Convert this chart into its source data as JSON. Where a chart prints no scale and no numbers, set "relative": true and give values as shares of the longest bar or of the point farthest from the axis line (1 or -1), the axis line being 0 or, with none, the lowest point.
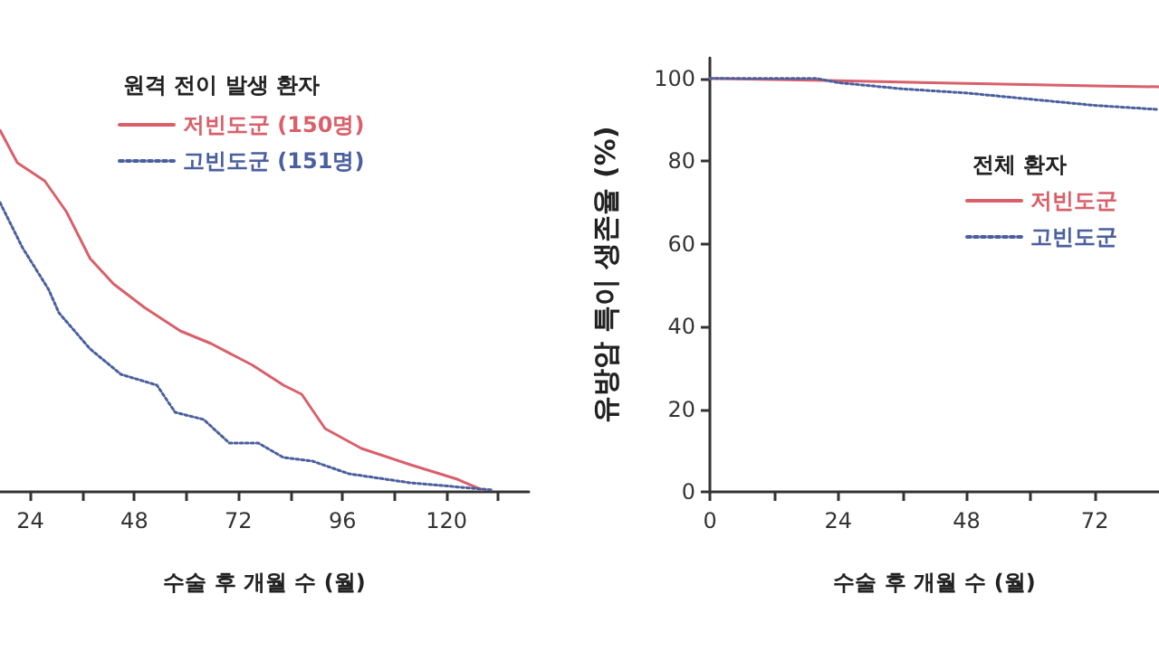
{
  "chart_data": [
    {
      "type": "line",
      "relative": true,
      "xlabel": "수술 후 개월 수 (월)",
      "legend_title": "원격 전이 발생 환자",
      "legend": "top right",
      "tick_labels": "x",
      "xlim": [
        17,
        139
      ],
      "xticks": [
        24,
        {
          "value": 36,
          "label": null
        },
        48,
        {
          "value": 60,
          "label": null
        },
        72,
        {
          "value": 84,
          "label": null
        },
        96,
        {
          "value": 108,
          "label": null
        },
        120,
        {
          "value": 132,
          "label": null
        }
      ],
      "series": [
        {
          "name": "저빈도군 (150명)",
          "color": "#d9606a",
          "line_style": "solid",
          "x": [
            17,
            21,
            27.3,
            32.3,
            37.8,
            43.2,
            50.3,
            58.6,
            65.7,
            75.3,
            82.4,
            86.6,
            92,
            100.4,
            111.7,
            122.5,
            128.3
          ],
          "values": [
            1,
            0.91,
            0.86,
            0.775,
            0.645,
            0.575,
            0.51,
            0.445,
            0.41,
            0.35,
            0.295,
            0.27,
            0.175,
            0.12,
            0.075,
            0.035,
            0.005
          ]
        },
        {
          "name": "고빈도군 (151명)",
          "color": "#4a5f9e",
          "line_style": "dotted",
          "x": [
            17,
            22.2,
            28.2,
            30.6,
            37.8,
            44.9,
            53.2,
            57.4,
            64,
            69.9,
            76.6,
            82.4,
            89.1,
            97.5,
            111.7,
            130.8
          ],
          "values": [
            0.8,
            0.675,
            0.56,
            0.495,
            0.395,
            0.325,
            0.295,
            0.22,
            0.2,
            0.135,
            0.135,
            0.095,
            0.085,
            0.05,
            0.025,
            0.005
          ]
        }
      ]
    },
    {
      "type": "line",
      "xlabel": "수술 후 개월 수 (월)",
      "ylabel": "유방암 특이 생존율 (%)",
      "legend_title": "전체 환자",
      "legend": "top right",
      "xlim": [
        0,
        84
      ],
      "xticks": [
        0,
        {
          "value": 12,
          "label": null
        },
        24,
        {
          "value": 36,
          "label": null
        },
        48,
        {
          "value": 60,
          "label": null
        },
        72
      ],
      "ylim": [
        0,
        105
      ],
      "yticks": [
        0,
        20,
        40,
        60,
        80,
        100
      ],
      "series": [
        {
          "name": "저빈도군",
          "color": "#d9606a",
          "line_style": "solid",
          "x": [
            0,
            24,
            48,
            72,
            84
          ],
          "values": [
            100,
            99.5,
            98.8,
            98.2,
            98
          ]
        },
        {
          "name": "고빈도군",
          "color": "#4a5f9e",
          "line_style": "dotted",
          "x": [
            0,
            20,
            24,
            36,
            48,
            60,
            72,
            84
          ],
          "values": [
            100,
            100,
            99,
            97.5,
            96.5,
            95,
            93.5,
            92.5
          ]
        }
      ]
    }
  ]
}
